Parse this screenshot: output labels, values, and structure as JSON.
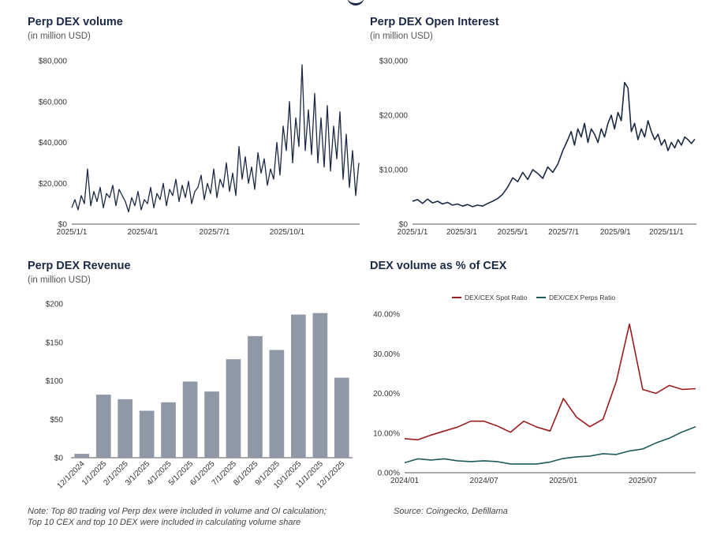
{
  "colors": {
    "navy": "#1b2a44",
    "bar": "#8f99a6",
    "spot": "#9b1c1c",
    "perps": "#1e5a5a",
    "axis": "#555555"
  },
  "notes": {
    "left_line1": "Note: Top 80 trading vol Perp dex were included in volume and OI calculation;",
    "left_line2": "Top 10 CEX and top 10 DEX were included in calculating volume share",
    "source": "Source: Coingecko, Defillama"
  },
  "chart_data": [
    {
      "id": "volume",
      "type": "line",
      "title": "Perp DEX volume",
      "subtitle": "(in million USD)",
      "ylim": [
        0,
        80000
      ],
      "yticks": [
        0,
        20000,
        40000,
        60000,
        80000
      ],
      "ytick_labels": [
        "$0",
        "$20,000",
        "$40,000",
        "$60,000",
        "$80,000"
      ],
      "xlim": [
        0,
        365
      ],
      "xticks": [
        0,
        90,
        181,
        273
      ],
      "xtick_labels": [
        "2025/1/1",
        "2025/4/1",
        "2025/7/1",
        "2025/10/1"
      ],
      "series": [
        {
          "name": "Perp DEX volume",
          "x": [
            0,
            4,
            8,
            12,
            16,
            20,
            24,
            28,
            32,
            36,
            40,
            44,
            48,
            52,
            56,
            60,
            64,
            68,
            72,
            76,
            80,
            84,
            88,
            92,
            96,
            100,
            104,
            108,
            112,
            116,
            120,
            124,
            128,
            132,
            136,
            140,
            144,
            148,
            152,
            156,
            160,
            164,
            168,
            172,
            176,
            180,
            184,
            188,
            192,
            196,
            200,
            204,
            208,
            212,
            216,
            220,
            224,
            228,
            232,
            236,
            240,
            244,
            248,
            252,
            256,
            260,
            264,
            268,
            272,
            276,
            280,
            284,
            288,
            292,
            296,
            300,
            304,
            308,
            312,
            316,
            320,
            324,
            328,
            332,
            336,
            340,
            344,
            348,
            352,
            356,
            360,
            364
          ],
          "values": [
            8000,
            12000,
            7000,
            14000,
            10000,
            27000,
            9000,
            16000,
            11000,
            18000,
            8000,
            15000,
            13000,
            19000,
            9000,
            17000,
            14000,
            11000,
            6000,
            13000,
            9000,
            16000,
            7000,
            12000,
            10000,
            18000,
            8000,
            15000,
            12000,
            20000,
            9000,
            17000,
            14000,
            22000,
            11000,
            19000,
            13000,
            21000,
            10000,
            16000,
            18000,
            24000,
            12000,
            20000,
            15000,
            27000,
            13000,
            22000,
            18000,
            30000,
            16000,
            25000,
            14000,
            38000,
            22000,
            33000,
            20000,
            28000,
            17000,
            35000,
            25000,
            32000,
            19000,
            27000,
            22000,
            40000,
            24000,
            48000,
            36000,
            60000,
            30000,
            52000,
            38000,
            78000,
            36000,
            56000,
            34000,
            64000,
            30000,
            52000,
            28000,
            58000,
            26000,
            48000,
            32000,
            55000,
            22000,
            44000,
            18000,
            36000,
            14000,
            30000
          ]
        }
      ]
    },
    {
      "id": "oi",
      "type": "line",
      "title": "Perp DEX Open Interest",
      "subtitle": "(in million USD)",
      "ylim": [
        0,
        30000
      ],
      "yticks": [
        0,
        10000,
        20000,
        30000
      ],
      "ytick_labels": [
        "$0",
        "$10,000",
        "$20,000",
        "$30,000"
      ],
      "xlim": [
        0,
        340
      ],
      "xticks": [
        0,
        59,
        120,
        181,
        243,
        304
      ],
      "xtick_labels": [
        "2025/1/1",
        "2025/3/1",
        "2025/5/1",
        "2025/7/1",
        "2025/9/1",
        "2025/11/1"
      ],
      "series": [
        {
          "name": "Perp DEX Open Interest",
          "x": [
            0,
            6,
            12,
            18,
            24,
            30,
            36,
            42,
            48,
            54,
            60,
            66,
            72,
            78,
            84,
            90,
            96,
            102,
            108,
            114,
            120,
            126,
            132,
            138,
            144,
            150,
            156,
            162,
            168,
            174,
            180,
            186,
            190,
            194,
            198,
            202,
            206,
            210,
            214,
            218,
            222,
            226,
            230,
            234,
            238,
            242,
            246,
            250,
            254,
            258,
            262,
            266,
            270,
            274,
            278,
            282,
            286,
            290,
            294,
            298,
            302,
            306,
            310,
            314,
            318,
            322,
            326,
            330,
            334,
            338
          ],
          "values": [
            4200,
            4500,
            3800,
            4600,
            3900,
            4200,
            3700,
            4000,
            3500,
            3700,
            3300,
            3600,
            3200,
            3500,
            3300,
            3800,
            4200,
            4700,
            5500,
            6800,
            8500,
            7800,
            9500,
            8200,
            10000,
            9300,
            8400,
            10500,
            9500,
            11000,
            13500,
            15500,
            17000,
            14500,
            17500,
            16000,
            18500,
            15000,
            17500,
            16500,
            15000,
            17500,
            16000,
            18500,
            20000,
            17500,
            20500,
            19000,
            26000,
            25000,
            17000,
            18500,
            15500,
            17500,
            16000,
            19000,
            17000,
            15500,
            16500,
            14500,
            15500,
            13500,
            15000,
            14000,
            15500,
            14500,
            16000,
            15500,
            14800,
            15600
          ]
        }
      ]
    },
    {
      "id": "revenue",
      "type": "bar",
      "title": "Perp DEX Revenue",
      "subtitle": "(in million USD)",
      "ylim": [
        0,
        200
      ],
      "yticks": [
        0,
        50,
        100,
        150,
        200
      ],
      "ytick_labels": [
        "$0",
        "$50",
        "$100",
        "$150",
        "$200"
      ],
      "categories": [
        "12/1/2024",
        "1/1/2025",
        "2/1/2025",
        "3/1/2025",
        "4/1/2025",
        "5/1/2025",
        "6/1/2025",
        "7/1/2025",
        "8/1/2025",
        "9/1/2025",
        "10/1/2025",
        "11/1/2025",
        "12/1/2025"
      ],
      "values": [
        5,
        82,
        76,
        61,
        72,
        99,
        86,
        128,
        158,
        140,
        186,
        188,
        104
      ]
    },
    {
      "id": "share",
      "type": "line",
      "title": "DEX volume as % of CEX",
      "subtitle": "",
      "ylim": [
        0,
        40
      ],
      "yticks": [
        0,
        10,
        20,
        30,
        40
      ],
      "ytick_labels": [
        "0.00%",
        "10.00%",
        "20.00%",
        "30.00%",
        "40.00%"
      ],
      "xlim": [
        0,
        22
      ],
      "xticks": [
        0,
        6,
        12,
        18
      ],
      "xtick_labels": [
        "2024/01",
        "2024/07",
        "2025/01",
        "2025/07"
      ],
      "legend": "top",
      "series": [
        {
          "name": "DEX/CEX Spot Ratio",
          "x": [
            0,
            1,
            2,
            3,
            4,
            5,
            6,
            7,
            8,
            9,
            10,
            11,
            12,
            13,
            14,
            15,
            16,
            17,
            18,
            19,
            20,
            21,
            22
          ],
          "values": [
            8.6,
            8.3,
            9.5,
            10.5,
            11.5,
            13.0,
            13.0,
            11.8,
            10.2,
            13.0,
            11.5,
            10.5,
            18.7,
            14.0,
            11.6,
            13.5,
            23.0,
            37.5,
            21.0,
            20.0,
            22.0,
            21.0,
            21.2
          ]
        },
        {
          "name": "DEX/CEX Perps Ratio",
          "x": [
            0,
            1,
            2,
            3,
            4,
            5,
            6,
            7,
            8,
            9,
            10,
            11,
            12,
            13,
            14,
            15,
            16,
            17,
            18,
            19,
            20,
            21,
            22
          ],
          "values": [
            2.5,
            3.5,
            3.2,
            3.5,
            3.0,
            2.8,
            3.0,
            2.8,
            2.2,
            2.2,
            2.2,
            2.7,
            3.6,
            4.0,
            4.2,
            4.8,
            4.6,
            5.5,
            6.0,
            7.5,
            8.7,
            10.3,
            11.6
          ]
        }
      ]
    }
  ]
}
